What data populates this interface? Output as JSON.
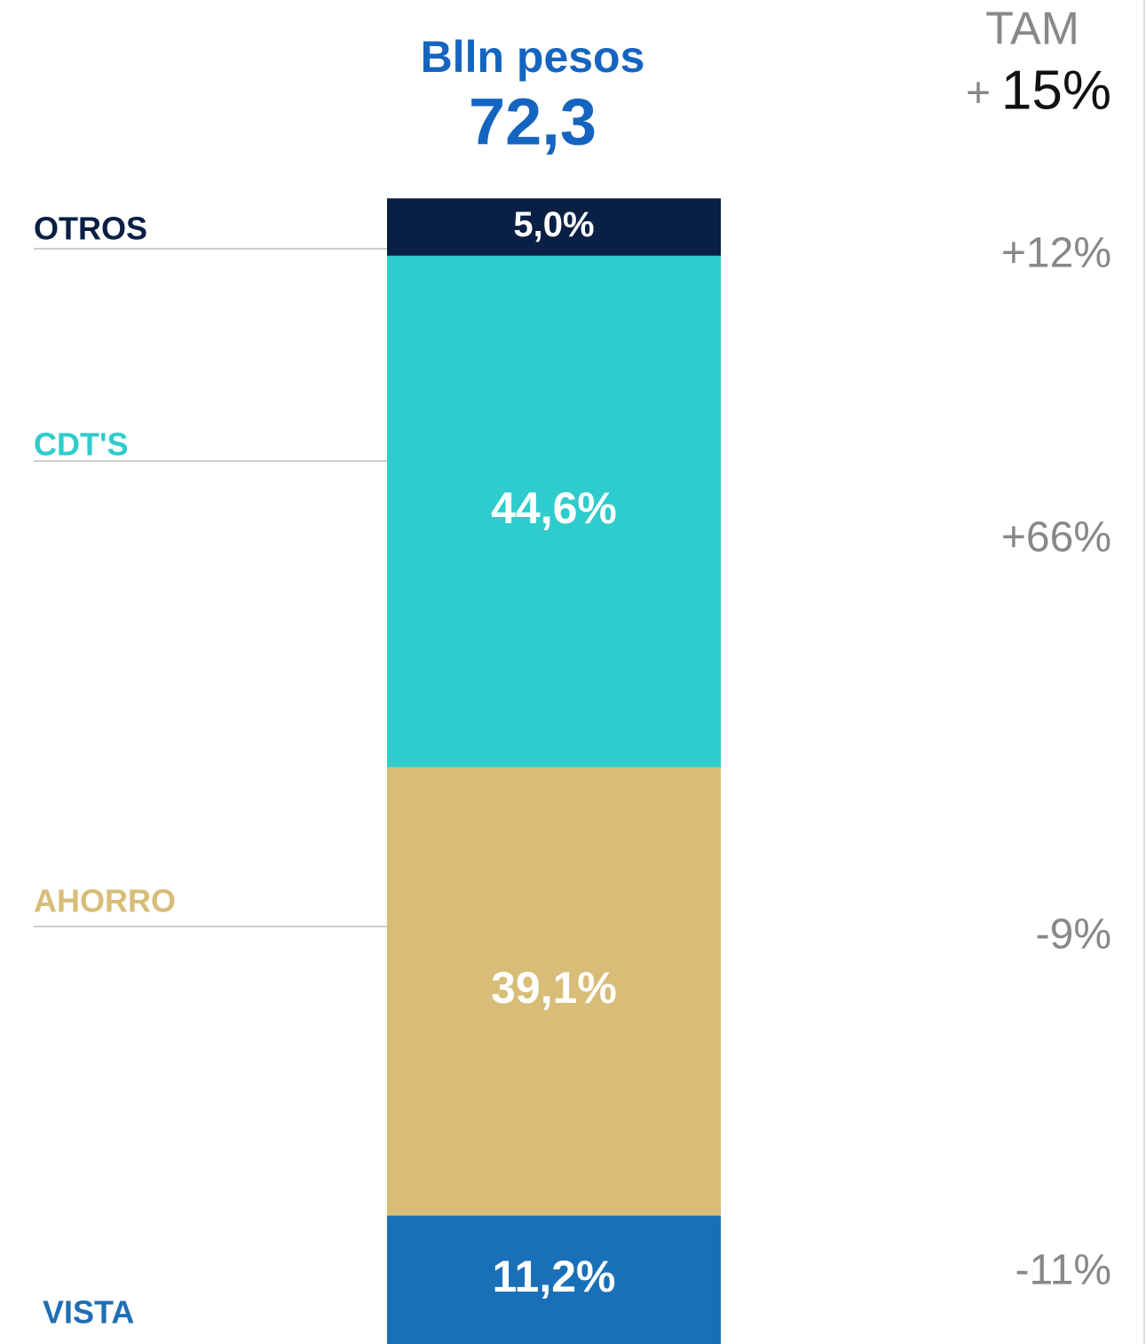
{
  "chart_data": {
    "type": "stacked_bar",
    "title": "Blln pesos",
    "subtitle": "72,3",
    "growth_title": "TAM",
    "growth_total_sign": "+",
    "growth_total": "15%",
    "ylim": [
      0,
      100
    ],
    "series": [
      {
        "name": "VISTA",
        "color": "#1a70b8",
        "values": [
          11.2
        ],
        "value_labels": [
          "11,2%"
        ],
        "growth": "-11%"
      },
      {
        "name": "AHORRO",
        "color": "#d7bd77",
        "values": [
          39.1
        ],
        "value_labels": [
          "39,1%"
        ],
        "growth": "-9%"
      },
      {
        "name": "CDT'S",
        "color": "#2ecccc",
        "values": [
          44.6
        ],
        "value_labels": [
          "44,6%"
        ],
        "growth": "+66%"
      },
      {
        "name": "OTROS",
        "color": "#0a1f44",
        "values": [
          5.0
        ],
        "value_labels": [
          "5,0%"
        ],
        "growth": "+12%"
      }
    ]
  }
}
